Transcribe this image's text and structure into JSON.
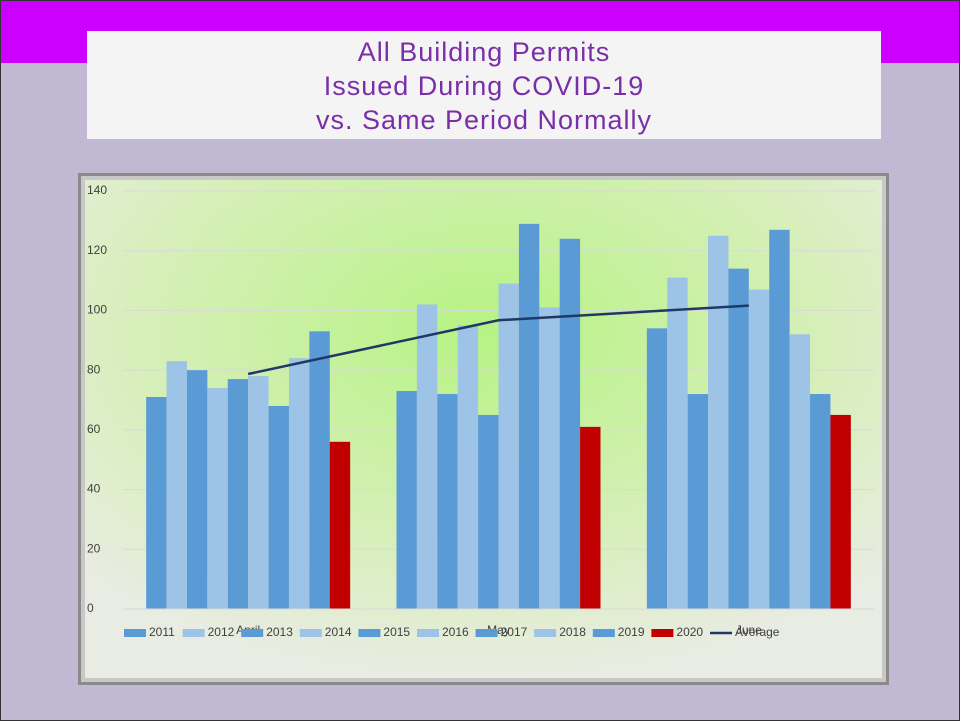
{
  "chart_data": {
    "type": "bar",
    "title": [
      "All Building Permits",
      "Issued During COVID-19",
      "vs. Same Period Normally"
    ],
    "categories": [
      "April",
      "May",
      "June"
    ],
    "ylim": [
      0,
      140
    ],
    "yticks": [
      0,
      20,
      40,
      60,
      80,
      100,
      120,
      140
    ],
    "grid": true,
    "legend": "bottom",
    "series": [
      {
        "name": "2011",
        "color": "#5b9bd5",
        "values": [
          71,
          73,
          94
        ]
      },
      {
        "name": "2012",
        "color": "#9dc3e6",
        "values": [
          83,
          102,
          111
        ]
      },
      {
        "name": "2013",
        "color": "#5b9bd5",
        "values": [
          80,
          72,
          72
        ]
      },
      {
        "name": "2014",
        "color": "#9dc3e6",
        "values": [
          74,
          95,
          125
        ]
      },
      {
        "name": "2015",
        "color": "#5b9bd5",
        "values": [
          77,
          65,
          114
        ]
      },
      {
        "name": "2016",
        "color": "#9dc3e6",
        "values": [
          78,
          109,
          107
        ]
      },
      {
        "name": "2017",
        "color": "#5b9bd5",
        "values": [
          68,
          129,
          127
        ]
      },
      {
        "name": "2018",
        "color": "#9dc3e6",
        "values": [
          84,
          101,
          92
        ]
      },
      {
        "name": "2019",
        "color": "#5b9bd5",
        "values": [
          93,
          124,
          72
        ]
      },
      {
        "name": "2020",
        "color": "#c00000",
        "values": [
          56,
          61,
          65
        ]
      },
      {
        "name": "Average",
        "color": "#1f3864",
        "type": "line",
        "values": [
          78.7,
          96.7,
          101.6
        ]
      }
    ]
  }
}
